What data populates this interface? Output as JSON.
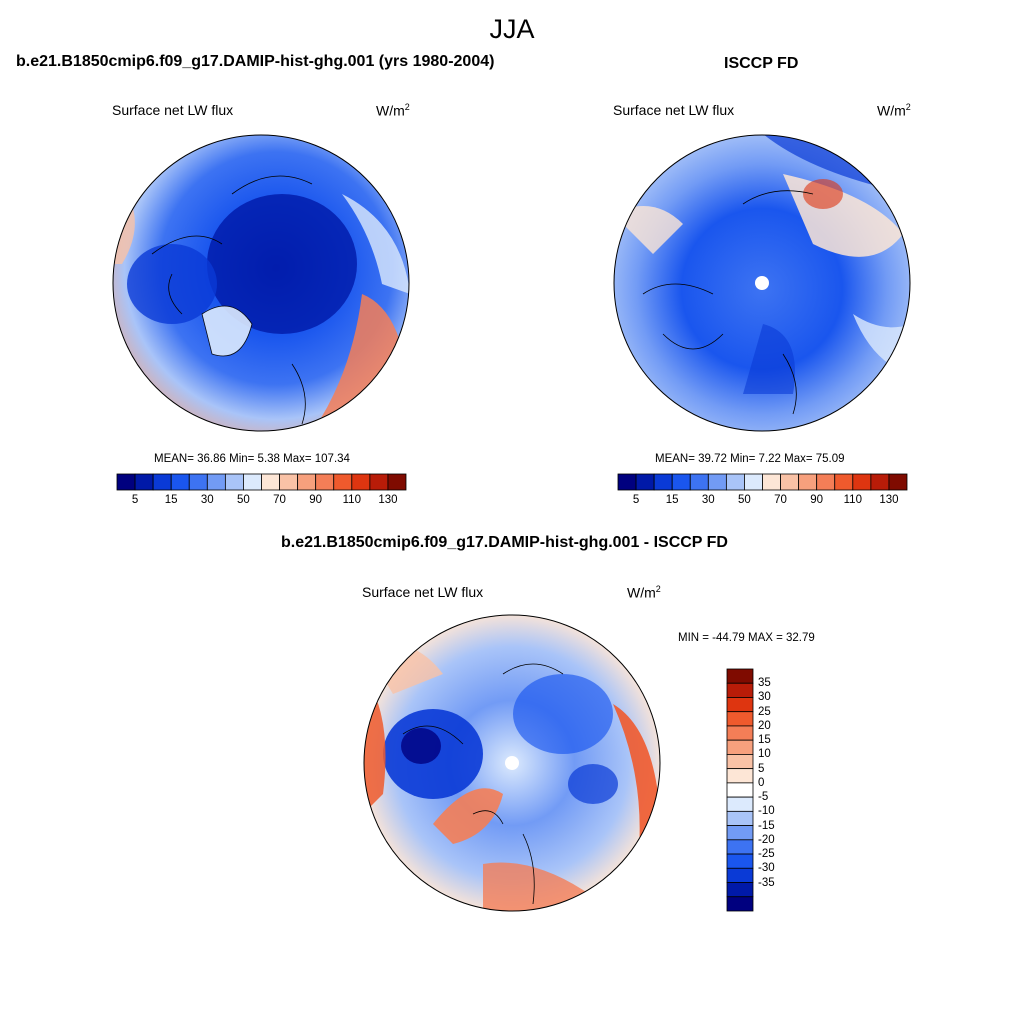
{
  "figure": {
    "title": "JJA",
    "panels": [
      {
        "title": "b.e21.B1850cmip6.f09_g17.DAMIP-hist-ghg.001 (yrs 1980-2004)",
        "variable": "Surface net LW flux",
        "units_base": "W/m",
        "units_exp": "2",
        "stats": "MEAN=  36.86  Min=   5.38  Max= 107.34",
        "colorbar": {
          "colors": [
            "#00007f",
            "#0019a8",
            "#0a3ad6",
            "#1a56ee",
            "#3d73f2",
            "#729bf5",
            "#a9c4f8",
            "#dceafd",
            "#fde6d6",
            "#f9c2a6",
            "#f7a07d",
            "#f47e57",
            "#ef5a2d",
            "#de3510",
            "#b81c08",
            "#7f0b00"
          ],
          "tick_labels": [
            "5",
            "15",
            "30",
            "50",
            "70",
            "90",
            "110",
            "130"
          ]
        }
      },
      {
        "title": "ISCCP FD",
        "variable": "Surface net LW flux",
        "units_base": "W/m",
        "units_exp": "2",
        "stats": "MEAN=  39.72  Min=   7.22  Max=  75.09",
        "colorbar": {
          "colors": [
            "#00007f",
            "#0019a8",
            "#0a3ad6",
            "#1a56ee",
            "#3d73f2",
            "#729bf5",
            "#a9c4f8",
            "#dceafd",
            "#fde6d6",
            "#f9c2a6",
            "#f7a07d",
            "#f47e57",
            "#ef5a2d",
            "#de3510",
            "#b81c08",
            "#7f0b00"
          ],
          "tick_labels": [
            "5",
            "15",
            "30",
            "50",
            "70",
            "90",
            "110",
            "130"
          ]
        }
      },
      {
        "title": "b.e21.B1850cmip6.f09_g17.DAMIP-hist-ghg.001 - ISCCP FD",
        "variable": "Surface net LW flux",
        "units_base": "W/m",
        "units_exp": "2",
        "stats": "MIN = -44.79 MAX =  32.79",
        "colorbar": {
          "colors": [
            "#7f0b00",
            "#b81c08",
            "#de3510",
            "#ef5a2d",
            "#f47e57",
            "#f7a07d",
            "#f9c2a6",
            "#fde6d6",
            "#ffffff",
            "#dceafd",
            "#a9c4f8",
            "#729bf5",
            "#3d73f2",
            "#1a56ee",
            "#0a3ad6",
            "#0019a8",
            "#00007f"
          ],
          "tick_labels": [
            "35",
            "30",
            "25",
            "20",
            "15",
            "10",
            "5",
            "0",
            "-5",
            "-10",
            "-15",
            "-20",
            "-25",
            "-30",
            "-35"
          ]
        }
      }
    ]
  }
}
